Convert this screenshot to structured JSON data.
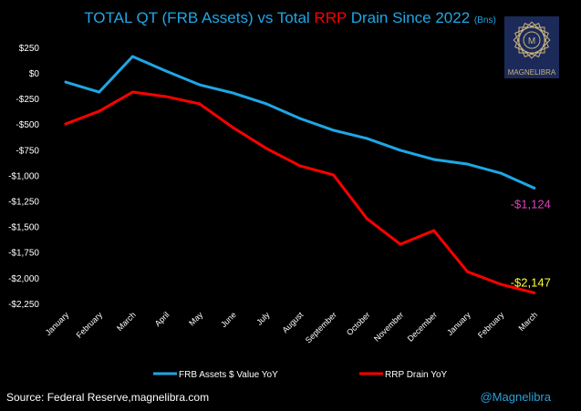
{
  "chart_data": {
    "type": "line",
    "title_parts": [
      "TOTAL QT (FRB Assets) vs Total ",
      "RRP",
      " Drain Since 2022 ",
      "(Bns)"
    ],
    "categories": [
      "January",
      "February",
      "March",
      "April",
      "May",
      "June",
      "July",
      "August",
      "September",
      "October",
      "November",
      "December",
      "January",
      "February",
      "March"
    ],
    "series": [
      {
        "name": "FRB Assets $ Value YoY",
        "color": "#1ea7e6",
        "values": [
          -89,
          -187,
          160,
          18,
          -116,
          -196,
          -302,
          -445,
          -560,
          -640,
          -756,
          -845,
          -890,
          -979,
          -1124
        ]
      },
      {
        "name": "RRP Drain YoY",
        "color": "#ff0000",
        "values": [
          -498,
          -374,
          -187,
          -231,
          -302,
          -534,
          -738,
          -907,
          -996,
          -1423,
          -1673,
          -1539,
          -1940,
          -2064,
          -2147
        ]
      }
    ],
    "annotations": [
      {
        "text": "-$1,124",
        "series": 0,
        "color": "#e040c0"
      },
      {
        "text": "-$2,147",
        "series": 1,
        "color": "#ffff33"
      }
    ],
    "yticks": [
      250,
      0,
      -250,
      -500,
      -750,
      -1000,
      -1250,
      -1500,
      -1750,
      -2000,
      -2250
    ],
    "ytick_labels": [
      "$250",
      "$0",
      "-$250",
      "-$500",
      "-$750",
      "-$1,000",
      "-$1,250",
      "-$1,500",
      "-$1,750",
      "-$2,000",
      "-$2,250"
    ],
    "ylim": [
      -2250,
      250
    ],
    "grid": false,
    "legend": "bottom"
  },
  "footer": {
    "source": "Source: Federal Reserve,magnelibra.com",
    "handle": "@Magnelibra"
  },
  "logo": {
    "text": "MAGNELIBRA"
  }
}
